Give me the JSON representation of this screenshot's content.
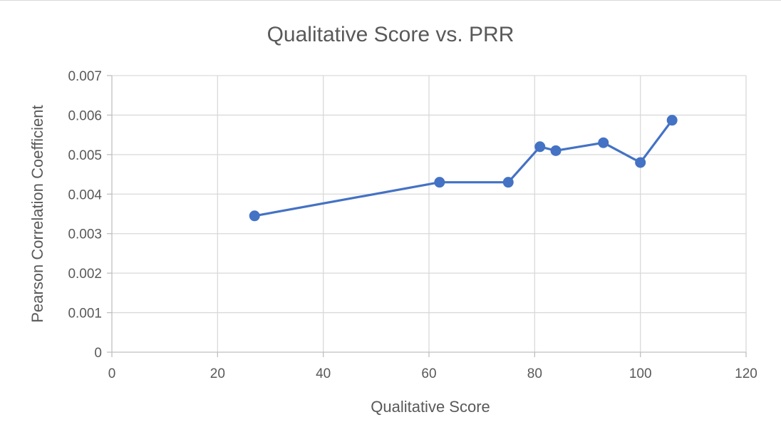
{
  "chart_data": {
    "type": "line",
    "title": "Qualitative Score vs. PRR",
    "xlabel": "Qualitative Score",
    "ylabel": "Pearson Correlation Coefficient",
    "xlim": [
      0,
      120
    ],
    "ylim": [
      0,
      0.007
    ],
    "x_ticks": [
      "0",
      "20",
      "40",
      "60",
      "80",
      "100",
      "120"
    ],
    "y_ticks": [
      "0",
      "0.001",
      "0.002",
      "0.003",
      "0.004",
      "0.005",
      "0.006",
      "0.007"
    ],
    "grid": true,
    "legend": "none",
    "series": [
      {
        "color": "#4472c4",
        "x": [
          27,
          62,
          75,
          81,
          84,
          93,
          100,
          106
        ],
        "y": [
          0.00345,
          0.0043,
          0.0043,
          0.0052,
          0.0051,
          0.0053,
          0.0048,
          0.00587
        ]
      }
    ]
  }
}
